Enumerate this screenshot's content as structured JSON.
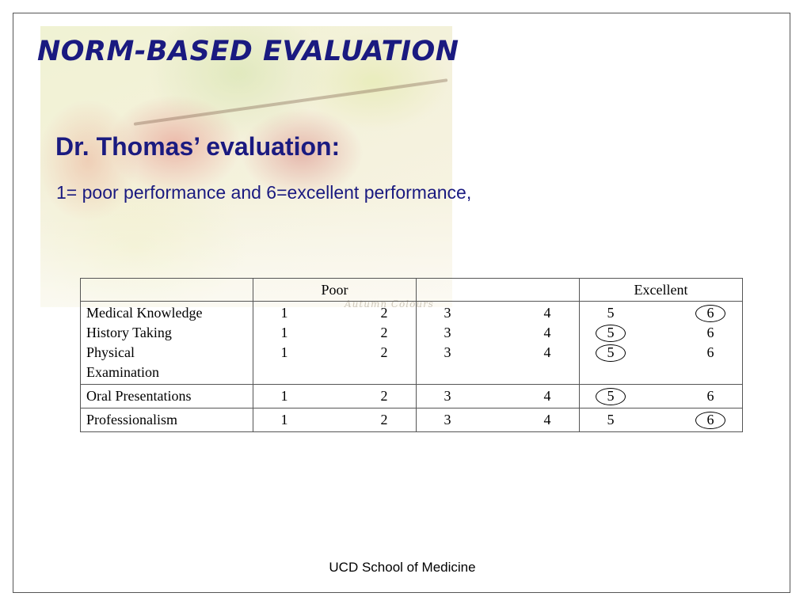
{
  "slide": {
    "title": "NORM-BASED EVALUATION",
    "subtitle": "Dr. Thomas’ evaluation:",
    "scale_note": "1= poor performance and 6=excellent performance,",
    "watermark": "Autumn Colours",
    "footer": "UCD School of Medicine"
  },
  "table": {
    "headers": [
      "",
      "Poor",
      "",
      "Excellent"
    ],
    "rows": [
      {
        "label": "Medical Knowledge",
        "scores": [
          "1",
          "2",
          "3",
          "4",
          "5",
          "6"
        ],
        "circled": "6"
      },
      {
        "label": "History Taking",
        "scores": [
          "1",
          "2",
          "3",
          "4",
          "5",
          "6"
        ],
        "circled": "5"
      },
      {
        "label": "Physical",
        "label_cont": "Examination",
        "scores": [
          "1",
          "2",
          "3",
          "4",
          "5",
          "6"
        ],
        "circled": "5"
      },
      {
        "label": "Oral Presentations",
        "scores": [
          "1",
          "2",
          "3",
          "4",
          "5",
          "6"
        ],
        "circled": "5"
      },
      {
        "label": "Professionalism",
        "scores": [
          "1",
          "2",
          "3",
          "4",
          "5",
          "6"
        ],
        "circled": "6"
      }
    ]
  },
  "colors": {
    "title": "#1a1a80",
    "border": "#555555",
    "text": "#000000"
  }
}
